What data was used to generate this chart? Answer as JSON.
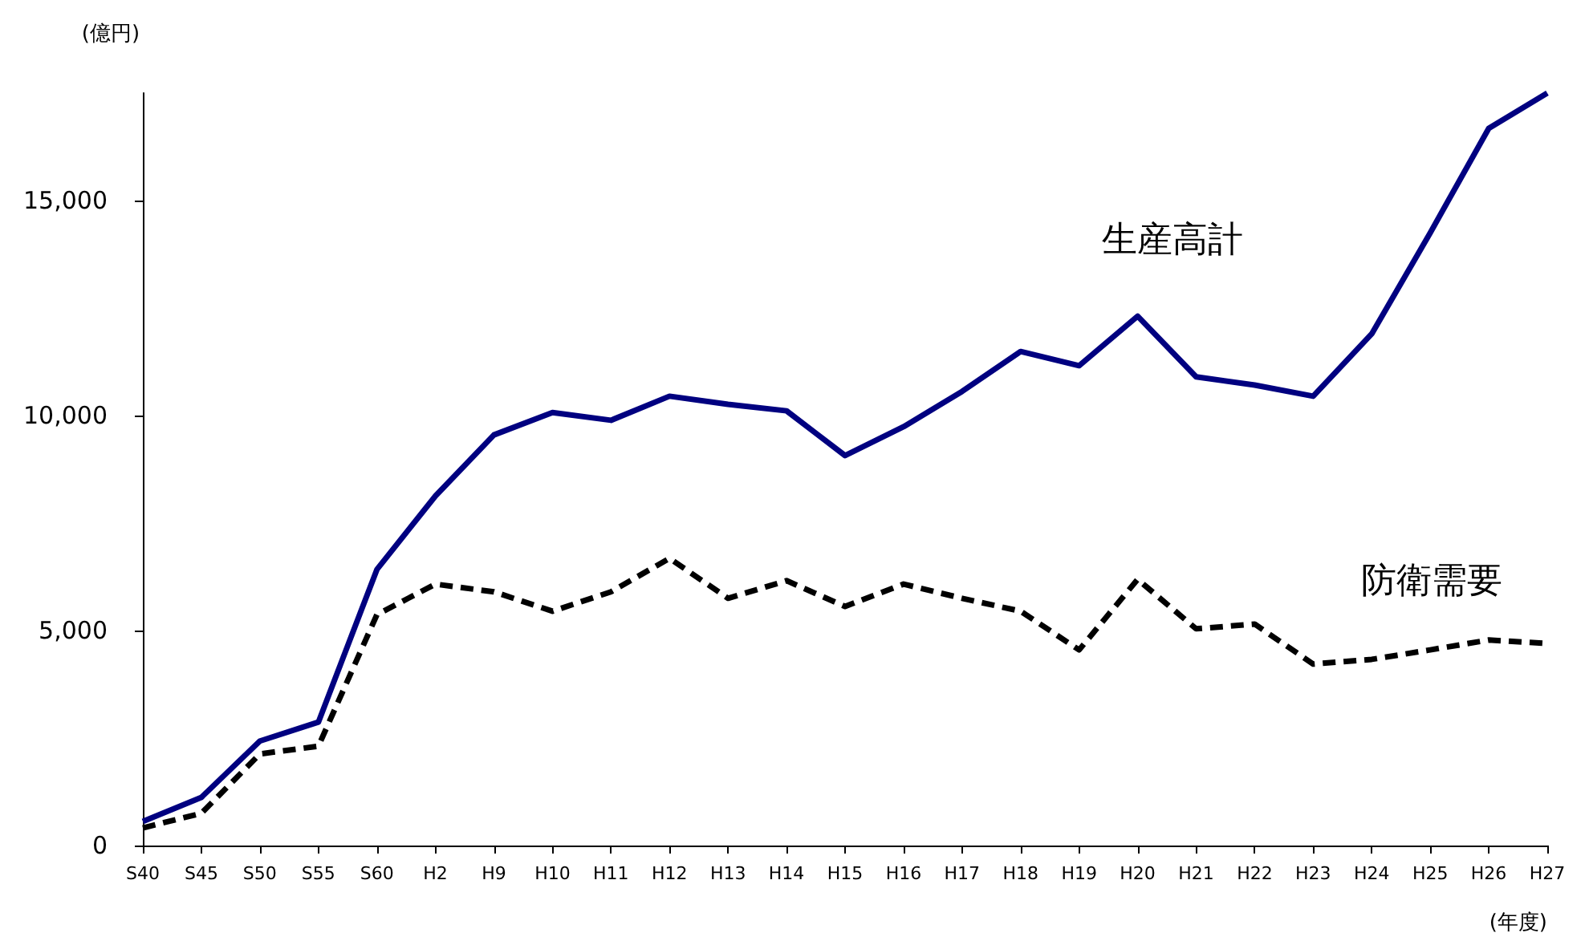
{
  "chart_data": {
    "type": "line",
    "ylabel": "(億円)",
    "xlabel": "(年度)",
    "categories": [
      "S40",
      "S45",
      "S50",
      "S55",
      "S60",
      "H2",
      "H9",
      "H10",
      "H11",
      "H12",
      "H13",
      "H14",
      "H15",
      "H16",
      "H17",
      "H18",
      "H19",
      "H20",
      "H21",
      "H22",
      "H23",
      "H24",
      "H25",
      "H26",
      "H27"
    ],
    "series": [
      {
        "name": "生産高計",
        "color": "#000080",
        "line_style": "solid",
        "values": [
          560,
          1120,
          2430,
          2870,
          6420,
          8130,
          9550,
          10070,
          9890,
          10450,
          10260,
          10110,
          9070,
          9740,
          10560,
          11490,
          11160,
          12310,
          10900,
          10710,
          10450,
          11900,
          14250,
          16680,
          17500
        ]
      },
      {
        "name": "防衛需要",
        "color": "#000000",
        "line_style": "dashed",
        "values": [
          410,
          750,
          2130,
          2310,
          5370,
          6080,
          5900,
          5450,
          5900,
          6680,
          5750,
          6160,
          5560,
          6080,
          5750,
          5450,
          4550,
          6190,
          5040,
          5150,
          4220,
          4330,
          4550,
          4780,
          4700
        ]
      }
    ],
    "ylim": [
      0,
      17500
    ],
    "yticks": [
      0,
      {
        "value": 5000,
        "label": "5,000"
      },
      {
        "value": 10000,
        "label": "10,000"
      },
      {
        "value": 15000,
        "label": "15,000"
      }
    ],
    "grid": false,
    "legend": false,
    "marker": "none"
  }
}
